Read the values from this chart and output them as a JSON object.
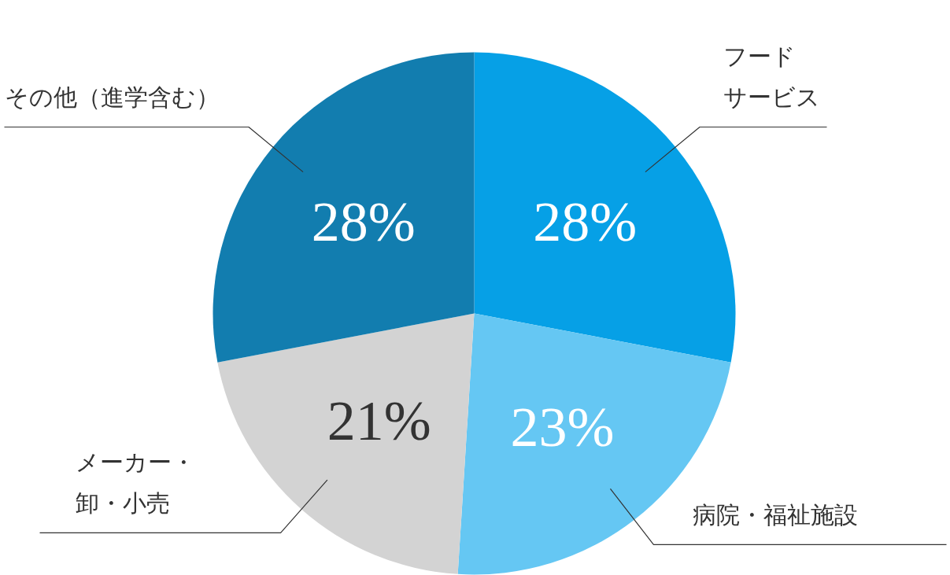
{
  "chart_data": {
    "type": "pie",
    "categories": [
      "フードサービス",
      "病院・福祉施設",
      "メーカー・卸・小売",
      "その他（進学含む）"
    ],
    "values": [
      28,
      23,
      21,
      28
    ],
    "colors": [
      "#06a0e6",
      "#65c7f3",
      "#d3d3d3",
      "#127daf"
    ],
    "value_labels": [
      "28%",
      "23%",
      "21%",
      "28%"
    ]
  }
}
